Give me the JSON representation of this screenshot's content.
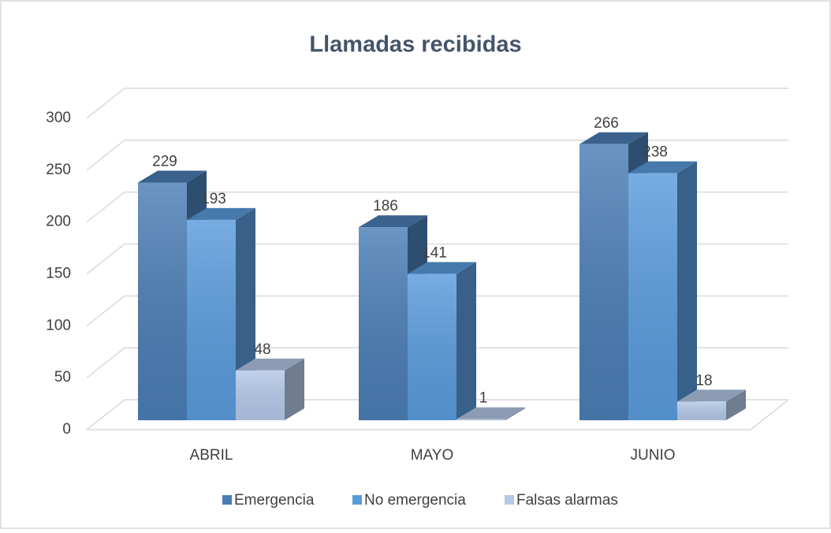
{
  "chart_data": {
    "type": "bar3d",
    "title": "Llamadas recibidas",
    "categories": [
      "ABRIL",
      "MAYO",
      "JUNIO"
    ],
    "series": [
      {
        "name": "Emergencia",
        "color": "#4a7db5",
        "values": [
          229,
          186,
          266
        ]
      },
      {
        "name": "No emergencia",
        "color": "#5a9bdc",
        "values": [
          193,
          141,
          238
        ]
      },
      {
        "name": "Falsas alarmas",
        "color": "#b4c8e8",
        "values": [
          48,
          1,
          18
        ]
      }
    ],
    "ylim": [
      0,
      300
    ],
    "yticks": [
      0,
      50,
      100,
      150,
      200,
      250,
      300
    ],
    "grid": true,
    "legend": "bottom"
  }
}
